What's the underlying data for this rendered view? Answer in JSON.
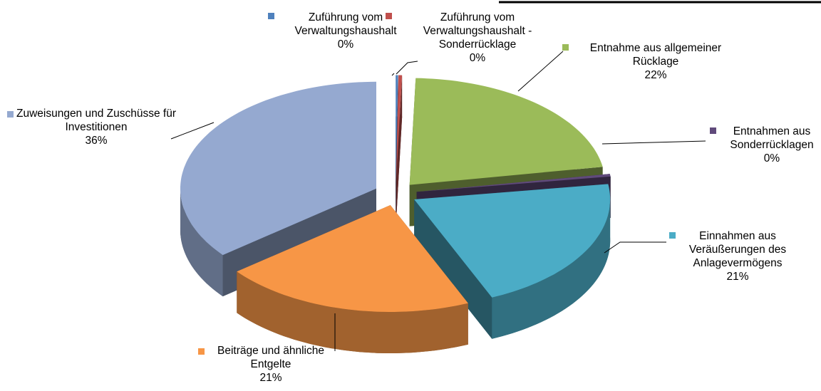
{
  "chart_data": {
    "type": "pie3d",
    "labels": [
      "Zuführung vom Verwaltungshaushalt",
      "Zuführung vom Verwaltungshaushalt - Sonderrücklage",
      "Entnahme aus allgemeiner Rücklage",
      "Entnahmen aus Sonderrücklagen",
      "Einnahmen aus Veräußerungen des Anlagevermögens",
      "Beiträge und ähnliche Entgelte",
      "Zuweisungen und Zuschüsse für Investitionen"
    ],
    "values": [
      0.2,
      0.3,
      22,
      0.4,
      21,
      21,
      36
    ],
    "value_labels": [
      "0%",
      "0%",
      "22%",
      "0%",
      "21%",
      "21%",
      "36%"
    ],
    "colors": [
      "#4f81bd",
      "#c0504d",
      "#9bbb59",
      "#604a7b",
      "#4bacc6",
      "#f79646",
      "#95a9d0"
    ]
  }
}
